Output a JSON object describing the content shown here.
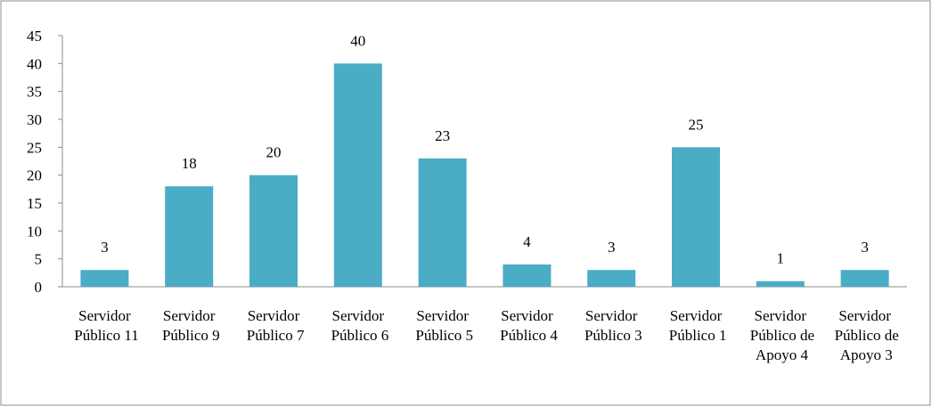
{
  "chart_data": {
    "type": "bar",
    "categories": [
      "Servidor Público 11",
      "Servidor Público 9",
      "Servidor Público 7",
      "Servidor Público 6",
      "Servidor Público 5",
      "Servidor Público 4",
      "Servidor Público 3",
      "Servidor Público 1",
      "Servidor Público de Apoyo 4",
      "Servidor Público de Apoyo 3"
    ],
    "values": [
      3,
      18,
      20,
      40,
      23,
      4,
      3,
      25,
      1,
      3
    ],
    "color": "#4bacc6",
    "ylim": [
      0,
      45
    ],
    "yticks": [
      0,
      5,
      10,
      15,
      20,
      25,
      30,
      35,
      40,
      45
    ],
    "grid": false
  }
}
